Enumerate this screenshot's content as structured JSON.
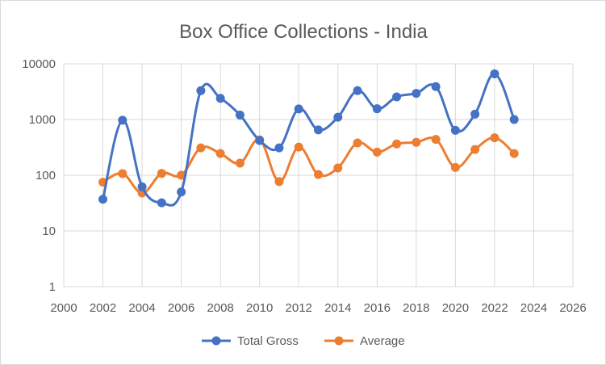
{
  "chart_data": {
    "type": "scatter",
    "title": "Box Office Collections - India",
    "xlabel": "",
    "ylabel": "",
    "xlim": [
      2000,
      2026
    ],
    "x_ticks": [
      2000,
      2002,
      2004,
      2006,
      2008,
      2010,
      2012,
      2014,
      2016,
      2018,
      2020,
      2022,
      2024,
      2026
    ],
    "y_scale": "log",
    "ylim": [
      1,
      10000
    ],
    "y_ticks": [
      1,
      10,
      100,
      1000,
      10000
    ],
    "grid": true,
    "legend_position": "bottom",
    "series": [
      {
        "name": "Total Gross",
        "color": "#4472c4",
        "x": [
          2002,
          2003,
          2004,
          2005,
          2006,
          2007,
          2008,
          2009,
          2010,
          2011,
          2012,
          2013,
          2014,
          2015,
          2016,
          2017,
          2018,
          2019,
          2020,
          2021,
          2022,
          2023
        ],
        "y": [
          37,
          970,
          62,
          32,
          50,
          3300,
          2400,
          1200,
          420,
          310,
          1550,
          650,
          1100,
          3300,
          1560,
          2550,
          2950,
          3900,
          640,
          1250,
          6600,
          1000
        ]
      },
      {
        "name": "Average",
        "color": "#ed7d31",
        "x": [
          2002,
          2003,
          2004,
          2005,
          2006,
          2007,
          2008,
          2009,
          2010,
          2011,
          2012,
          2013,
          2014,
          2015,
          2016,
          2017,
          2018,
          2019,
          2020,
          2021,
          2022,
          2023
        ],
        "y": [
          75,
          107,
          48,
          108,
          100,
          310,
          245,
          165,
          430,
          77,
          320,
          103,
          135,
          380,
          260,
          365,
          390,
          440,
          138,
          290,
          470,
          245
        ]
      }
    ]
  }
}
